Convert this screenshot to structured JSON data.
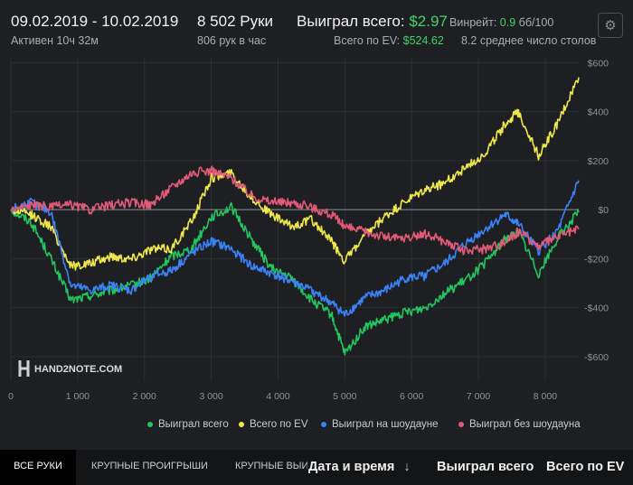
{
  "header": {
    "date_range": "09.02.2019 - 10.02.2019",
    "active_time": "Активен 10ч 32м",
    "hands": "8 502 Руки",
    "hands_per_hour": "806 рук в час",
    "won_total_label": "Выиграл всего:",
    "won_total_value": "$2.97",
    "ev_total_label": "Всего по EV:",
    "ev_total_value": "$524.62",
    "winrate_label": "Винрейт:",
    "winrate_value": "0.9",
    "winrate_unit": "бб/100",
    "avg_tables": "8.2 среднее число столов",
    "gear_icon": "gear-icon"
  },
  "watermark": {
    "brand": "HAND2NOTE.COM"
  },
  "chart_data": {
    "type": "line",
    "x_ticks": [
      "0",
      "1 000",
      "2 000",
      "3 000",
      "4 000",
      "5 000",
      "6 000",
      "7 000",
      "8 000"
    ],
    "y_ticks": [
      "$600",
      "$400",
      "$200",
      "$0",
      "-$200",
      "-$400",
      "-$600"
    ],
    "xlim": [
      0,
      8502
    ],
    "ylim": [
      -700,
      620
    ],
    "grid": true,
    "legend_position": "bottom",
    "series": [
      {
        "name": "Выиграл всего",
        "color": "#22c55e",
        "x": [
          0,
          300,
          600,
          900,
          1200,
          1500,
          1800,
          2100,
          2400,
          2700,
          3000,
          3300,
          3600,
          3900,
          4200,
          4500,
          4800,
          5000,
          5300,
          5600,
          5900,
          6200,
          6500,
          6800,
          7100,
          7400,
          7600,
          7900,
          8200,
          8502
        ],
        "y": [
          0,
          -50,
          -200,
          -370,
          -350,
          -330,
          -310,
          -280,
          -190,
          -160,
          -30,
          10,
          -120,
          -240,
          -280,
          -370,
          -430,
          -590,
          -480,
          -450,
          -420,
          -400,
          -340,
          -290,
          -220,
          -120,
          -90,
          -260,
          -110,
          -10
        ]
      },
      {
        "name": "Всего по EV",
        "color": "#f0e84a",
        "x": [
          0,
          300,
          600,
          900,
          1200,
          1500,
          1800,
          2100,
          2400,
          2700,
          3000,
          3300,
          3600,
          3900,
          4200,
          4500,
          4800,
          5000,
          5300,
          5600,
          5900,
          6200,
          6500,
          6800,
          7100,
          7400,
          7600,
          7900,
          8200,
          8502
        ],
        "y": [
          0,
          -20,
          -70,
          -230,
          -220,
          -190,
          -200,
          -160,
          -160,
          -50,
          130,
          150,
          50,
          -20,
          -70,
          -40,
          -130,
          -210,
          -110,
          -30,
          30,
          80,
          110,
          170,
          230,
          350,
          400,
          220,
          360,
          540
        ]
      },
      {
        "name": "Выиграл на шоудауне",
        "color": "#3b82f6",
        "x": [
          0,
          300,
          600,
          900,
          1200,
          1500,
          1800,
          2100,
          2400,
          2700,
          3000,
          3300,
          3600,
          3900,
          4200,
          4500,
          4800,
          5000,
          5300,
          5600,
          5900,
          6200,
          6500,
          6800,
          7100,
          7400,
          7600,
          7900,
          8200,
          8502
        ],
        "y": [
          0,
          30,
          -10,
          -310,
          -330,
          -310,
          -330,
          -270,
          -250,
          -180,
          -130,
          -160,
          -230,
          -260,
          -290,
          -330,
          -380,
          -430,
          -360,
          -330,
          -280,
          -270,
          -220,
          -140,
          -80,
          -20,
          -60,
          -170,
          -80,
          120
        ]
      },
      {
        "name": "Выиграл без шоудауна",
        "color": "#e25a78",
        "x": [
          0,
          300,
          600,
          900,
          1200,
          1500,
          1800,
          2100,
          2400,
          2700,
          3000,
          3300,
          3600,
          3900,
          4200,
          4500,
          4800,
          5000,
          5300,
          5600,
          5900,
          6200,
          6500,
          6800,
          7100,
          7400,
          7600,
          7900,
          8200,
          8502
        ],
        "y": [
          0,
          20,
          10,
          20,
          0,
          20,
          30,
          20,
          90,
          150,
          160,
          130,
          60,
          30,
          30,
          10,
          -20,
          -70,
          -90,
          -110,
          -120,
          -100,
          -130,
          -170,
          -160,
          -130,
          -90,
          -150,
          -110,
          -80
        ]
      }
    ]
  },
  "tabs": {
    "all_hands": "ВСЕ РУКИ",
    "big_losses": "КРУПНЫЕ ПРОИГРЫШИ",
    "big_wins": "КРУПНЫЕ ВЫИГ"
  },
  "columns": {
    "date_time": "Дата и время",
    "sort_arrow": "↓",
    "won_total": "Выиграл всего",
    "ev_total": "Всего по EV"
  }
}
